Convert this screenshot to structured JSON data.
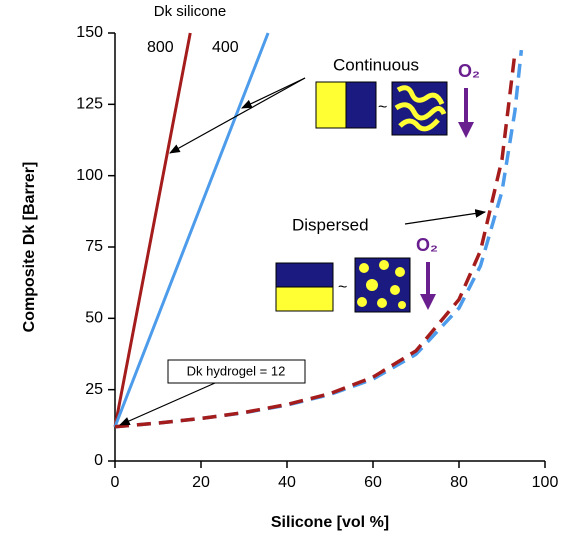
{
  "chart_data": {
    "type": "line",
    "x_label": "Silicone [vol %]",
    "y_label": "Composite Dk [Barrer]",
    "xlim": [
      0,
      100
    ],
    "ylim": [
      0,
      150
    ],
    "xticks": [
      0,
      20,
      40,
      60,
      80,
      100
    ],
    "yticks": [
      0,
      25,
      50,
      75,
      100,
      125,
      150
    ],
    "series_title": "Dk silicone",
    "series": [
      {
        "name": "800",
        "color": "#a51c1c",
        "style": "solid",
        "x": [
          0,
          17.5
        ],
        "values": [
          12,
          150
        ]
      },
      {
        "name": "400",
        "color": "#4d9ceb",
        "style": "solid",
        "x": [
          0,
          35.6
        ],
        "values": [
          12,
          150
        ]
      },
      {
        "color": "#4d9ceb",
        "style": "dashed",
        "x": [
          0,
          10,
          20,
          30,
          40,
          50,
          60,
          70,
          80,
          85,
          90,
          93,
          94.5
        ],
        "values": [
          12,
          13.3,
          14.9,
          16.9,
          19.6,
          23.3,
          28.7,
          37.4,
          53.6,
          68.4,
          94.5,
          122.6,
          144
        ]
      },
      {
        "color": "#a51c1c",
        "style": "dashed",
        "x": [
          0,
          10,
          20,
          30,
          40,
          50,
          60,
          70,
          80,
          85,
          90,
          93
        ],
        "values": [
          12,
          13.3,
          14.9,
          17,
          19.8,
          23.6,
          29.4,
          38.6,
          56.6,
          73.7,
          105.7,
          143
        ]
      }
    ],
    "annotations": {
      "continuous": "Continuous",
      "dispersed": "Dispersed",
      "oxygen_continuous": "O₂",
      "oxygen_dispersed": "O₂",
      "approx_continuous": "~",
      "approx_dispersed": "~",
      "hydrogel": "Dk hydrogel = 12"
    }
  }
}
